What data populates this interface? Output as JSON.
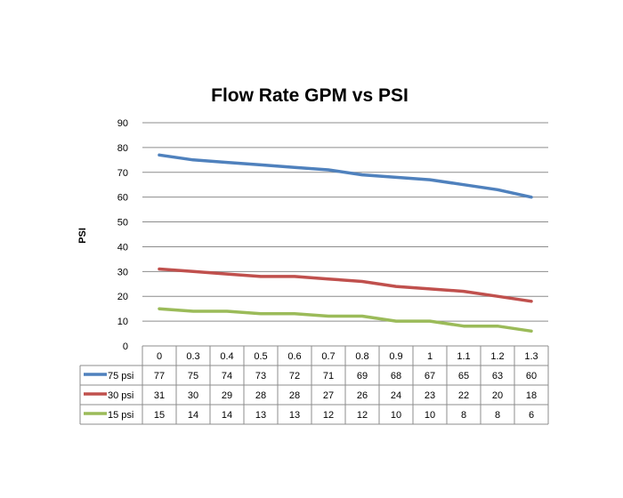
{
  "chart_data": {
    "type": "line",
    "title": "Flow Rate GPM vs PSI",
    "xlabel": "",
    "ylabel": "PSI",
    "categories": [
      "0",
      "0.3",
      "0.4",
      "0.5",
      "0.6",
      "0.7",
      "0.8",
      "0.9",
      "1",
      "1.1",
      "1.2",
      "1.3"
    ],
    "ylim": [
      0,
      90
    ],
    "yticks": [
      0,
      10,
      20,
      30,
      40,
      50,
      60,
      70,
      80,
      90
    ],
    "grid": true,
    "legend": "data-table",
    "series": [
      {
        "name": "75 psi",
        "color": "#4f81bd",
        "values": [
          77,
          75,
          74,
          73,
          72,
          71,
          69,
          68,
          67,
          65,
          63,
          60
        ]
      },
      {
        "name": "30 psi",
        "color": "#c0504d",
        "values": [
          31,
          30,
          29,
          28,
          28,
          27,
          26,
          24,
          23,
          22,
          20,
          18
        ]
      },
      {
        "name": "15 psi",
        "color": "#9bbb59",
        "values": [
          15,
          14,
          14,
          13,
          13,
          12,
          12,
          10,
          10,
          8,
          8,
          6
        ]
      }
    ]
  }
}
